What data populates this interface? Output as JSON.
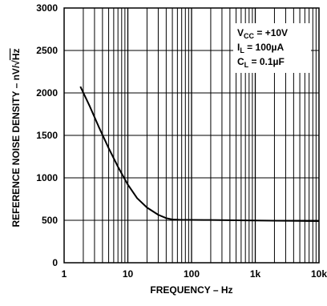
{
  "chart_data": {
    "type": "line",
    "title": "",
    "xlabel": "FREQUENCY – Hz",
    "ylabel_prefix": "REFERENCE NOISE DENSITY – nV/",
    "ylabel_radical": "Hz",
    "x_scale": "log",
    "xlim": [
      1,
      10000
    ],
    "ylim": [
      0,
      3000
    ],
    "grid": true,
    "x_ticks": [
      1,
      10,
      100,
      1000,
      10000
    ],
    "x_tick_labels": [
      "1",
      "10",
      "100",
      "1k",
      "10k"
    ],
    "y_ticks": [
      0,
      500,
      1000,
      1500,
      2000,
      2500,
      3000
    ],
    "y_tick_labels": [
      "0",
      "500",
      "1000",
      "1500",
      "2000",
      "2500",
      "3000"
    ],
    "annotations": [
      {
        "main": "V",
        "sub": "CC",
        "rest": " = +10V"
      },
      {
        "main": "I",
        "sub": "L",
        "rest": " = 100µA"
      },
      {
        "main": "C",
        "sub": "L",
        "rest": " = 0.1µF"
      }
    ],
    "series": [
      {
        "x": [
          1.8,
          2.5,
          3.5,
          5,
          7,
          10,
          14,
          20,
          30,
          40,
          50,
          60,
          70,
          100,
          200,
          500,
          1000,
          2000,
          5000,
          10000
        ],
        "y": [
          2075,
          1850,
          1600,
          1350,
          1130,
          920,
          760,
          650,
          565,
          525,
          510,
          507,
          505,
          505,
          503,
          500,
          498,
          495,
          493,
          490
        ]
      }
    ]
  }
}
